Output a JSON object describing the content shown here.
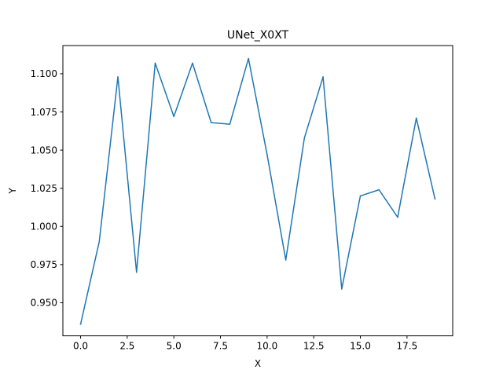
{
  "chart_data": {
    "type": "line",
    "title": "UNet_X0XT",
    "xlabel": "X",
    "ylabel": "Y",
    "xlim": [
      -0.95,
      19.95
    ],
    "ylim": [
      0.9283,
      1.1185
    ],
    "x_ticks": [
      0.0,
      2.5,
      5.0,
      7.5,
      10.0,
      12.5,
      15.0,
      17.5
    ],
    "x_tick_labels": [
      "0.0",
      "2.5",
      "5.0",
      "7.5",
      "10.0",
      "12.5",
      "15.0",
      "17.5"
    ],
    "y_ticks": [
      0.95,
      0.975,
      1.0,
      1.025,
      1.05,
      1.075,
      1.1
    ],
    "y_tick_labels": [
      "0.950",
      "0.975",
      "1.000",
      "1.025",
      "1.050",
      "1.075",
      "1.100"
    ],
    "grid": false,
    "series": [
      {
        "color": "#1f77b4",
        "x": [
          0,
          1,
          2,
          3,
          4,
          5,
          6,
          7,
          8,
          9,
          10,
          11,
          12,
          13,
          14,
          15,
          16,
          17,
          18,
          19
        ],
        "y": [
          0.936,
          0.99,
          1.098,
          0.97,
          1.107,
          1.072,
          1.107,
          1.068,
          1.067,
          1.11,
          1.047,
          0.978,
          1.058,
          1.098,
          0.959,
          1.02,
          1.024,
          1.006,
          1.071,
          1.018
        ]
      }
    ]
  }
}
